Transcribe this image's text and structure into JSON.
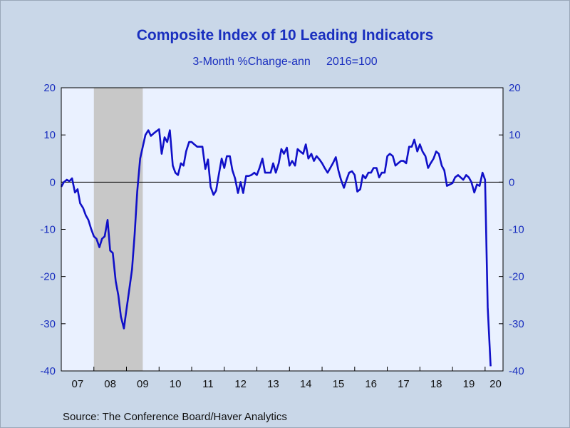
{
  "chart_data": {
    "type": "line",
    "title": "Composite Index of 10 Leading Indicators",
    "subtitle": "3-Month %Change-ann     2016=100",
    "source": "Source:  The Conference Board/Haver Analytics",
    "ylim": [
      -40,
      20
    ],
    "yticks": [
      "20",
      "10",
      "0",
      "-10",
      "-20",
      "-30",
      "-40"
    ],
    "yticks_right": [
      "20",
      "10",
      "0",
      "-10",
      "-20",
      "-30",
      "-40"
    ],
    "xlim": [
      2007.0,
      2020.55
    ],
    "xtick_labels": [
      "07",
      "08",
      "09",
      "10",
      "11",
      "12",
      "13",
      "14",
      "15",
      "16",
      "17",
      "18",
      "19",
      "20"
    ],
    "recession": [
      2008.0,
      2009.5
    ],
    "grid": false,
    "zero_line": true,
    "colors": {
      "line": "#1010c8",
      "plot_bg": "#eaf1ff",
      "recession": "#c8c8c8",
      "text": "#1a2fbf"
    },
    "series": [
      {
        "values": [
          [
            2007.0,
            -1.0
          ],
          [
            2007.08,
            0.0
          ],
          [
            2007.17,
            0.5
          ],
          [
            2007.25,
            0.2
          ],
          [
            2007.33,
            0.8
          ],
          [
            2007.42,
            -2.2
          ],
          [
            2007.5,
            -1.5
          ],
          [
            2007.58,
            -4.5
          ],
          [
            2007.67,
            -5.5
          ],
          [
            2007.75,
            -7.0
          ],
          [
            2007.83,
            -8.0
          ],
          [
            2007.92,
            -10.0
          ],
          [
            2008.0,
            -11.5
          ],
          [
            2008.08,
            -12.0
          ],
          [
            2008.17,
            -13.8
          ],
          [
            2008.25,
            -12.0
          ],
          [
            2008.33,
            -11.5
          ],
          [
            2008.42,
            -8.0
          ],
          [
            2008.5,
            -14.5
          ],
          [
            2008.58,
            -15.0
          ],
          [
            2008.67,
            -21.0
          ],
          [
            2008.75,
            -24.0
          ],
          [
            2008.83,
            -28.5
          ],
          [
            2008.92,
            -31.0
          ],
          [
            2009.0,
            -27.0
          ],
          [
            2009.08,
            -23.0
          ],
          [
            2009.17,
            -18.5
          ],
          [
            2009.25,
            -11.0
          ],
          [
            2009.33,
            -2.0
          ],
          [
            2009.42,
            5.0
          ],
          [
            2009.5,
            7.5
          ],
          [
            2009.58,
            10.0
          ],
          [
            2009.67,
            11.0
          ],
          [
            2009.75,
            9.8
          ],
          [
            2009.83,
            10.3
          ],
          [
            2009.92,
            10.8
          ],
          [
            2010.0,
            11.2
          ],
          [
            2010.08,
            6.0
          ],
          [
            2010.17,
            9.5
          ],
          [
            2010.25,
            8.5
          ],
          [
            2010.33,
            11.0
          ],
          [
            2010.42,
            3.5
          ],
          [
            2010.5,
            2.0
          ],
          [
            2010.58,
            1.5
          ],
          [
            2010.67,
            4.0
          ],
          [
            2010.75,
            3.5
          ],
          [
            2010.83,
            6.5
          ],
          [
            2010.92,
            8.5
          ],
          [
            2011.0,
            8.5
          ],
          [
            2011.08,
            8.0
          ],
          [
            2011.17,
            7.5
          ],
          [
            2011.25,
            7.5
          ],
          [
            2011.33,
            7.5
          ],
          [
            2011.42,
            2.8
          ],
          [
            2011.5,
            4.8
          ],
          [
            2011.58,
            -1.0
          ],
          [
            2011.67,
            -2.7
          ],
          [
            2011.75,
            -1.8
          ],
          [
            2011.83,
            1.5
          ],
          [
            2011.92,
            5.0
          ],
          [
            2012.0,
            3.0
          ],
          [
            2012.08,
            5.5
          ],
          [
            2012.17,
            5.5
          ],
          [
            2012.25,
            2.5
          ],
          [
            2012.33,
            0.8
          ],
          [
            2012.42,
            -2.3
          ],
          [
            2012.5,
            0.0
          ],
          [
            2012.58,
            -2.3
          ],
          [
            2012.67,
            1.3
          ],
          [
            2012.75,
            1.3
          ],
          [
            2012.83,
            1.5
          ],
          [
            2012.92,
            2.0
          ],
          [
            2013.0,
            1.5
          ],
          [
            2013.08,
            3.0
          ],
          [
            2013.17,
            5.0
          ],
          [
            2013.25,
            2.0
          ],
          [
            2013.33,
            2.0
          ],
          [
            2013.42,
            2.0
          ],
          [
            2013.5,
            4.0
          ],
          [
            2013.58,
            2.0
          ],
          [
            2013.67,
            4.0
          ],
          [
            2013.75,
            7.0
          ],
          [
            2013.83,
            6.0
          ],
          [
            2013.92,
            7.3
          ],
          [
            2014.0,
            3.5
          ],
          [
            2014.08,
            4.5
          ],
          [
            2014.17,
            3.5
          ],
          [
            2014.25,
            7.0
          ],
          [
            2014.33,
            6.5
          ],
          [
            2014.42,
            6.0
          ],
          [
            2014.5,
            8.0
          ],
          [
            2014.58,
            5.0
          ],
          [
            2014.67,
            6.0
          ],
          [
            2014.75,
            4.5
          ],
          [
            2014.83,
            5.5
          ],
          [
            2014.92,
            4.8
          ],
          [
            2015.0,
            4.0
          ],
          [
            2015.08,
            3.0
          ],
          [
            2015.17,
            2.0
          ],
          [
            2015.25,
            3.0
          ],
          [
            2015.33,
            4.0
          ],
          [
            2015.42,
            5.3
          ],
          [
            2015.5,
            2.5
          ],
          [
            2015.58,
            0.5
          ],
          [
            2015.67,
            -1.2
          ],
          [
            2015.75,
            0.5
          ],
          [
            2015.83,
            2.0
          ],
          [
            2015.92,
            2.3
          ],
          [
            2016.0,
            1.5
          ],
          [
            2016.08,
            -2.0
          ],
          [
            2016.17,
            -1.5
          ],
          [
            2016.25,
            1.5
          ],
          [
            2016.33,
            0.8
          ],
          [
            2016.42,
            2.0
          ],
          [
            2016.5,
            2.0
          ],
          [
            2016.58,
            3.0
          ],
          [
            2016.67,
            3.0
          ],
          [
            2016.75,
            1.0
          ],
          [
            2016.83,
            2.0
          ],
          [
            2016.92,
            2.0
          ],
          [
            2017.0,
            5.5
          ],
          [
            2017.08,
            6.0
          ],
          [
            2017.17,
            5.5
          ],
          [
            2017.25,
            3.5
          ],
          [
            2017.33,
            4.0
          ],
          [
            2017.42,
            4.5
          ],
          [
            2017.5,
            4.5
          ],
          [
            2017.58,
            4.0
          ],
          [
            2017.67,
            7.5
          ],
          [
            2017.75,
            7.5
          ],
          [
            2017.83,
            9.0
          ],
          [
            2017.92,
            6.5
          ],
          [
            2018.0,
            8.0
          ],
          [
            2018.08,
            6.5
          ],
          [
            2018.17,
            5.5
          ],
          [
            2018.25,
            3.0
          ],
          [
            2018.33,
            4.0
          ],
          [
            2018.42,
            5.0
          ],
          [
            2018.5,
            6.5
          ],
          [
            2018.58,
            6.0
          ],
          [
            2018.67,
            3.5
          ],
          [
            2018.75,
            2.5
          ],
          [
            2018.83,
            -0.8
          ],
          [
            2018.92,
            -0.5
          ],
          [
            2019.0,
            -0.2
          ],
          [
            2019.08,
            1.0
          ],
          [
            2019.17,
            1.5
          ],
          [
            2019.25,
            1.0
          ],
          [
            2019.33,
            0.5
          ],
          [
            2019.42,
            1.5
          ],
          [
            2019.5,
            1.0
          ],
          [
            2019.58,
            0.0
          ],
          [
            2019.67,
            -2.2
          ],
          [
            2019.75,
            -0.5
          ],
          [
            2019.83,
            -0.8
          ],
          [
            2019.92,
            2.0
          ],
          [
            2020.0,
            0.5
          ],
          [
            2020.08,
            -26.5
          ],
          [
            2020.17,
            -39.0
          ]
        ]
      }
    ]
  }
}
